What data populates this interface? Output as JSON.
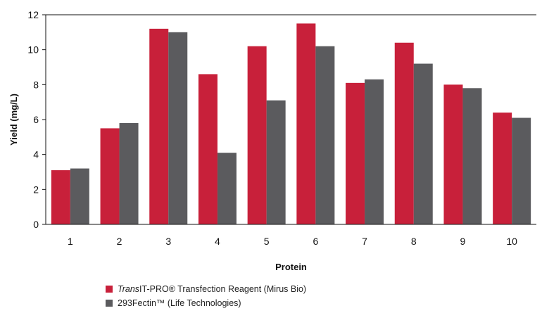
{
  "chart_data": {
    "type": "bar",
    "categories": [
      "1",
      "2",
      "3",
      "4",
      "5",
      "6",
      "7",
      "8",
      "9",
      "10"
    ],
    "series": [
      {
        "name": "TransIT-PRO® Transfection Reagent (Mirus Bio)",
        "color": "#c8203a",
        "values": [
          3.1,
          5.5,
          11.2,
          8.6,
          10.2,
          11.5,
          8.1,
          10.4,
          8.0,
          6.4
        ]
      },
      {
        "name": "293Fectin™ (Life Technologies)",
        "color": "#5b5b5e",
        "values": [
          3.2,
          5.8,
          11.0,
          4.1,
          7.1,
          10.2,
          8.3,
          9.2,
          7.8,
          6.1
        ]
      }
    ],
    "xlabel": "Protein",
    "ylabel": "Yield (mg/L)",
    "ylim": [
      0,
      12
    ],
    "yticks": [
      "0",
      "2",
      "4",
      "6",
      "8",
      "10",
      "12"
    ],
    "grid": false,
    "legend_position": "bottom-left"
  },
  "legend": {
    "items": [
      {
        "italic": "Trans",
        "rest": "IT-PRO® Transfection Reagent (Mirus Bio)"
      },
      {
        "italic": "",
        "rest": "293Fectin™ (Life Technologies)"
      }
    ]
  }
}
